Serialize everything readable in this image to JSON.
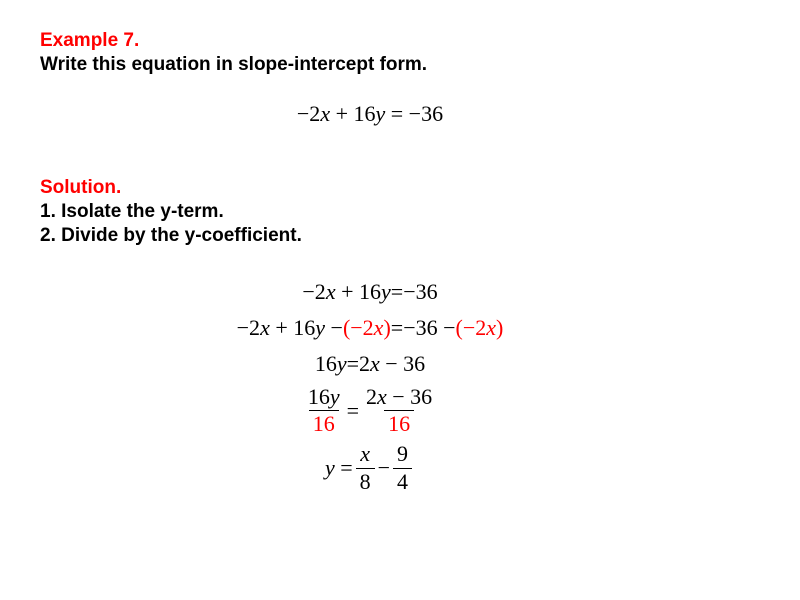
{
  "colors": {
    "accent": "#ff0000",
    "text": "#000000",
    "background": "#ffffff"
  },
  "title": {
    "text": "Example 7.",
    "color": "#ff0000",
    "fontsize": 19,
    "weight": "bold"
  },
  "instruction": {
    "text": "Write this equation in slope-intercept form.",
    "fontsize": 19,
    "weight": "bold"
  },
  "main_equation": {
    "parts": [
      "−2",
      "x",
      " + 16",
      "y",
      " = −36"
    ],
    "fontsize": 22
  },
  "solution_label": {
    "text": "Solution.",
    "color": "#ff0000",
    "fontsize": 19,
    "weight": "bold"
  },
  "steps": [
    {
      "text": "1. Isolate the y-term."
    },
    {
      "text": "2. Divide by the y-coefficient."
    }
  ],
  "work": {
    "line1": {
      "left": "−2x + 16y",
      "eq": " = ",
      "right": "−36"
    },
    "line2": {
      "left_a": "−2x + 16y − ",
      "left_red": "(−2x)",
      "eq": " = ",
      "right_a": "−36 − ",
      "right_red": "(−2x)"
    },
    "line3": {
      "left": "16y",
      "eq": " = ",
      "right": "2x − 36"
    },
    "line4": {
      "left_num": "16y",
      "left_den": "16",
      "eq": " = ",
      "right_num": "2x − 36",
      "right_den": "16"
    },
    "line5": {
      "lead": "y = ",
      "f1_num": "x",
      "f1_den": "8",
      "mid": " − ",
      "f2_num": "9",
      "f2_den": "4"
    }
  }
}
